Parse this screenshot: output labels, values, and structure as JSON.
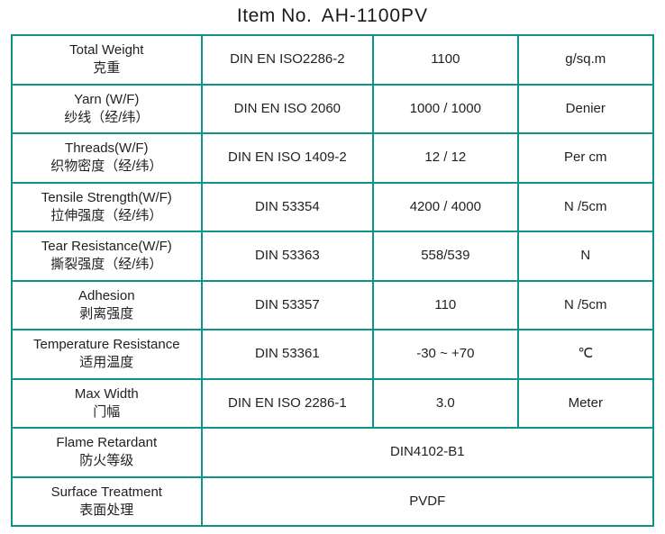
{
  "title_label": "Item No.",
  "title_value": "AH-1100PV",
  "colors": {
    "border": "#0d9488",
    "text": "#222222",
    "background": "#ffffff"
  },
  "rows": [
    {
      "prop_en": "Total Weight",
      "prop_cn": "克重",
      "standard": "DIN EN ISO2286-2",
      "value": "1100",
      "unit": "g/sq.m"
    },
    {
      "prop_en": "Yarn (W/F)",
      "prop_cn": "纱线（经/纬）",
      "standard": "DIN EN ISO 2060",
      "value": "1000 / 1000",
      "unit": "Denier"
    },
    {
      "prop_en": "Threads(W/F)",
      "prop_cn": "织物密度（经/纬）",
      "standard": "DIN EN ISO 1409-2",
      "value": "12 / 12",
      "unit": "Per cm"
    },
    {
      "prop_en": "Tensile Strength(W/F)",
      "prop_cn": "拉伸强度（经/纬）",
      "standard": "DIN 53354",
      "value": "4200 / 4000",
      "unit": "N /5cm"
    },
    {
      "prop_en": "Tear Resistance(W/F)",
      "prop_cn": "撕裂强度（经/纬）",
      "standard": "DIN 53363",
      "value": "558/539",
      "unit": "N"
    },
    {
      "prop_en": "Adhesion",
      "prop_cn": "剥离强度",
      "standard": "DIN 53357",
      "value": "110",
      "unit": "N /5cm"
    },
    {
      "prop_en": "Temperature Resistance",
      "prop_cn": "适用温度",
      "standard": "DIN 53361",
      "value": "-30 ~ +70",
      "unit": "℃"
    },
    {
      "prop_en": "Max Width",
      "prop_cn": "门幅",
      "standard": "DIN EN ISO 2286-1",
      "value": "3.0",
      "unit": "Meter"
    }
  ],
  "wide_rows": [
    {
      "prop_en": "Flame Retardant",
      "prop_cn": "防火等级",
      "value": "DIN4102-B1"
    },
    {
      "prop_en": "Surface Treatment",
      "prop_cn": "表面处理",
      "value": "PVDF"
    }
  ]
}
